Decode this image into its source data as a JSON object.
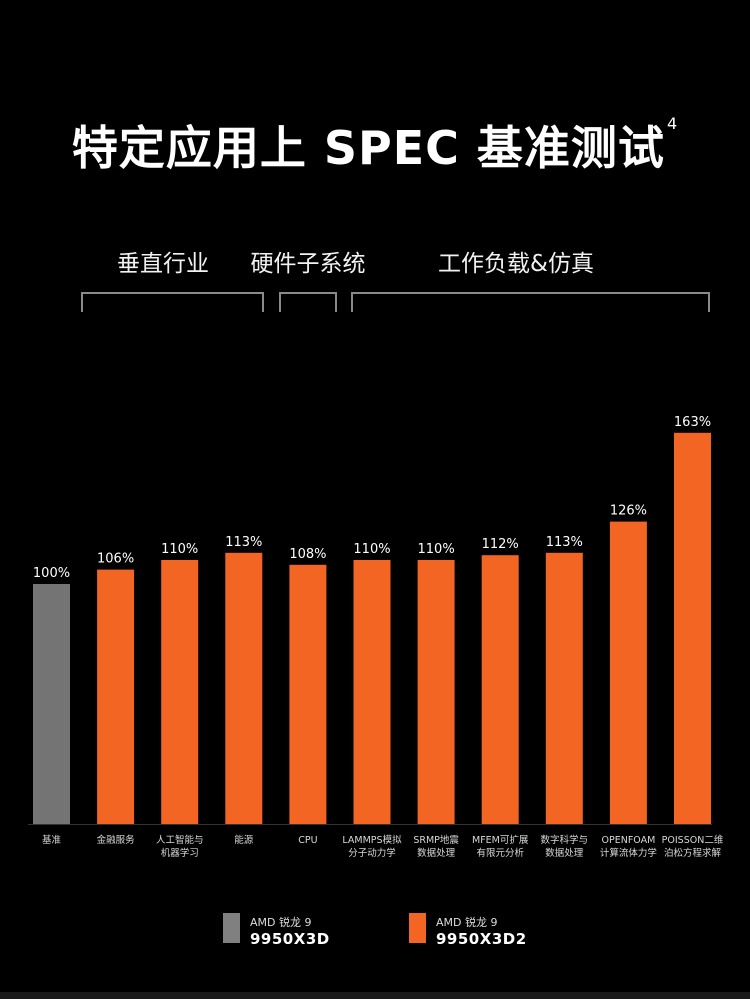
{
  "title": "特定应用上 SPEC 基准测试",
  "title_footnote": "4",
  "groups": [
    {
      "label": "垂直行业"
    },
    {
      "label": "硬件子系统"
    },
    {
      "label": "工作负载&仿真"
    }
  ],
  "colors": {
    "baseline": "#747474",
    "highlight": "#f26522",
    "background": "#000000"
  },
  "chart_data": {
    "type": "bar",
    "categories": [
      [
        "基准"
      ],
      [
        "金融服务"
      ],
      [
        "人工智能与",
        "机器学习"
      ],
      [
        "能源"
      ],
      [
        "CPU"
      ],
      [
        "LAMMPS模拟",
        "分子动力学"
      ],
      [
        "SRMP地震",
        "数据处理"
      ],
      [
        "MFEM可扩展",
        "有限元分析"
      ],
      [
        "数字科学与",
        "数据处理"
      ],
      [
        "OPENFOAM",
        "计算流体力学"
      ],
      [
        "POISSON二维",
        "泊松方程求解"
      ]
    ],
    "values": [
      100,
      106,
      110,
      113,
      108,
      110,
      110,
      112,
      113,
      126,
      163
    ],
    "value_labels": [
      "100%",
      "106%",
      "110%",
      "113%",
      "108%",
      "110%",
      "110%",
      "112%",
      "113%",
      "126%",
      "163%"
    ],
    "series_of_bar": [
      "AMD 锐龙 9 9950X3D",
      "AMD 锐龙 9 9950X3D2",
      "AMD 锐龙 9 9950X3D2",
      "AMD 锐龙 9 9950X3D2",
      "AMD 锐龙 9 9950X3D2",
      "AMD 锐龙 9 9950X3D2",
      "AMD 锐龙 9 9950X3D2",
      "AMD 锐龙 9 9950X3D2",
      "AMD 锐龙 9 9950X3D2",
      "AMD 锐龙 9 9950X3D2",
      "AMD 锐龙 9 9950X3D2"
    ],
    "title": "特定应用上 SPEC 基准测试",
    "xlabel": "",
    "ylabel": "",
    "grid": false,
    "legend_position": "bottom"
  },
  "legend": [
    {
      "brand": "AMD 锐龙 9",
      "model": "9950X3D",
      "color": "#808080"
    },
    {
      "brand": "AMD 锐龙 9",
      "model": "9950X3D2",
      "color": "#f26522"
    }
  ]
}
